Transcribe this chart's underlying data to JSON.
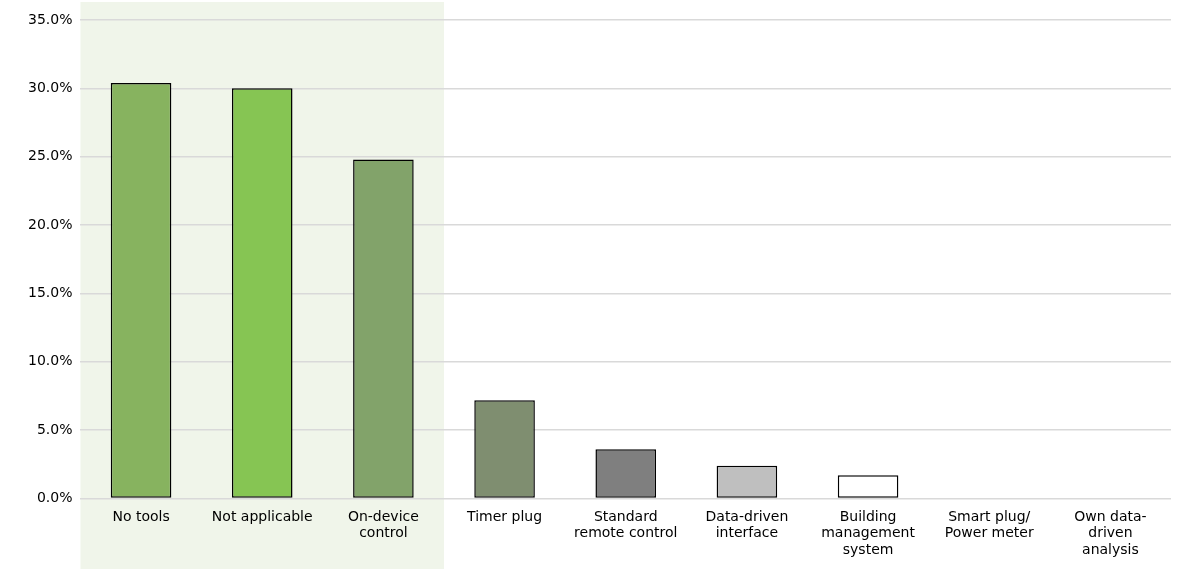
{
  "chart_data": {
    "type": "bar",
    "categories": [
      "No tools",
      "Not applicable",
      "On-device control",
      "Timer plug",
      "Standard remote control",
      "Data-driven interface",
      "Building management system",
      "Smart plug/Power meter",
      "Own data-driven analysis"
    ],
    "values": [
      30.4,
      30.0,
      24.8,
      7.2,
      3.6,
      2.4,
      1.7,
      0,
      0
    ],
    "colors": [
      "#87b35f",
      "#86c553",
      "#82a36a",
      "#7f8e70",
      "#7f7f7f",
      "#bfbfbf",
      "#ffffff",
      "#ffffff",
      "#ffffff"
    ],
    "ylim": [
      0,
      35
    ],
    "yticks": [
      {
        "value": 0,
        "label": "0.0%"
      },
      {
        "value": 5,
        "label": "5.0%"
      },
      {
        "value": 10,
        "label": "10.0%"
      },
      {
        "value": 15,
        "label": "15.0%"
      },
      {
        "value": 20,
        "label": "20.0%"
      },
      {
        "value": 25,
        "label": "25.0%"
      },
      {
        "value": 30,
        "label": "30.0%"
      },
      {
        "value": 35,
        "label": "35.0%"
      }
    ],
    "bands": [
      {
        "axis": "x",
        "from": "No tools",
        "to": "On-device control",
        "color": "#f0f5ea"
      }
    ],
    "grid": "y",
    "legend": false
  }
}
